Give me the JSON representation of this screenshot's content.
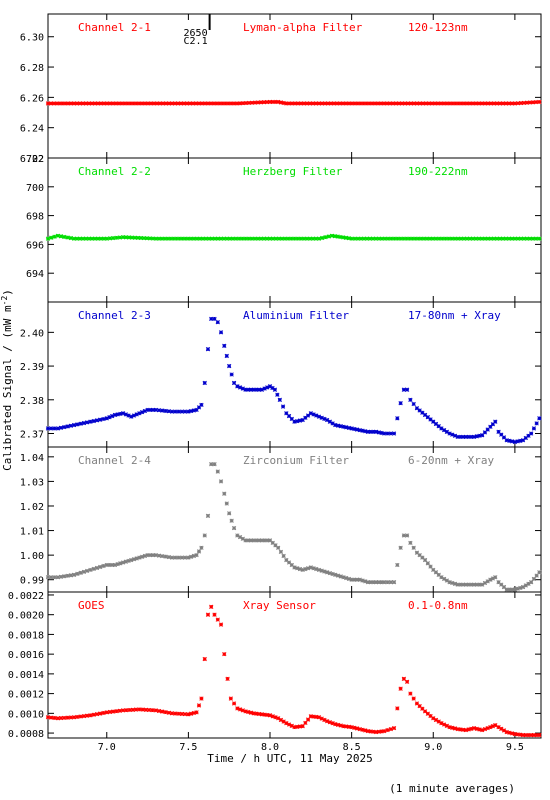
{
  "chart_data": [
    {
      "type": "scatter",
      "panel": "channel-2-1",
      "labels": [
        "Channel 2-1",
        "Lyman-alpha Filter",
        "120-123nm"
      ],
      "annotation": [
        "2650",
        "C2.1"
      ],
      "annotation_x": 7.63,
      "color": "#ff0000",
      "ylim": [
        6.22,
        6.315
      ],
      "yticks": [
        6.22,
        6.24,
        6.26,
        6.28,
        6.3
      ],
      "ytick_labels": [
        "6.22",
        "6.24",
        "6.26",
        "6.28",
        "6.30"
      ],
      "series": [
        {
          "points": [
            [
              6.64,
              6.256
            ],
            [
              6.8,
              6.256
            ],
            [
              7.0,
              6.256
            ],
            [
              7.2,
              6.256
            ],
            [
              7.4,
              6.256
            ],
            [
              7.6,
              6.256
            ],
            [
              7.8,
              6.256
            ],
            [
              8.0,
              6.257
            ],
            [
              8.05,
              6.257
            ],
            [
              8.1,
              6.256
            ],
            [
              8.3,
              6.256
            ],
            [
              8.5,
              6.256
            ],
            [
              8.7,
              6.256
            ],
            [
              8.9,
              6.256
            ],
            [
              9.1,
              6.256
            ],
            [
              9.3,
              6.256
            ],
            [
              9.5,
              6.256
            ],
            [
              9.65,
              6.257
            ]
          ]
        }
      ]
    },
    {
      "type": "scatter",
      "panel": "channel-2-2",
      "labels": [
        "Channel 2-2",
        "Herzberg Filter",
        "190-222nm"
      ],
      "color": "#00dd00",
      "ylim": [
        692.0,
        702.0
      ],
      "yticks": [
        694,
        696,
        698,
        700,
        702
      ],
      "ytick_labels": [
        "694",
        "696",
        "698",
        "700",
        "702"
      ],
      "series": [
        {
          "points": [
            [
              6.64,
              696.4
            ],
            [
              6.7,
              696.6
            ],
            [
              6.8,
              696.4
            ],
            [
              7.0,
              696.4
            ],
            [
              7.1,
              696.5
            ],
            [
              7.3,
              696.4
            ],
            [
              7.5,
              696.4
            ],
            [
              7.7,
              696.4
            ],
            [
              8.0,
              696.4
            ],
            [
              8.3,
              696.4
            ],
            [
              8.38,
              696.6
            ],
            [
              8.5,
              696.4
            ],
            [
              8.8,
              696.4
            ],
            [
              9.0,
              696.4
            ],
            [
              9.3,
              696.4
            ],
            [
              9.5,
              696.4
            ],
            [
              9.65,
              696.4
            ]
          ]
        }
      ]
    },
    {
      "type": "scatter",
      "panel": "channel-2-3",
      "labels": [
        "Channel 2-3",
        "Aluminium Filter",
        "17-80nm + Xray"
      ],
      "color": "#0000cc",
      "ylim": [
        2.366,
        2.409
      ],
      "yticks": [
        2.37,
        2.38,
        2.39,
        2.4
      ],
      "ytick_labels": [
        "2.37",
        "2.38",
        "2.39",
        "2.40"
      ],
      "series": [
        {
          "points": [
            [
              6.64,
              2.3715
            ],
            [
              6.7,
              2.3715
            ],
            [
              6.8,
              2.3725
            ],
            [
              6.9,
              2.3735
            ],
            [
              7.0,
              2.3745
            ],
            [
              7.05,
              2.3755
            ],
            [
              7.1,
              2.376
            ],
            [
              7.15,
              2.375
            ],
            [
              7.2,
              2.376
            ],
            [
              7.25,
              2.377
            ],
            [
              7.3,
              2.377
            ],
            [
              7.4,
              2.3765
            ],
            [
              7.5,
              2.3765
            ],
            [
              7.55,
              2.377
            ],
            [
              7.58,
              2.3785
            ],
            [
              7.6,
              2.385
            ],
            [
              7.62,
              2.395
            ],
            [
              7.64,
              2.404
            ],
            [
              7.66,
              2.404
            ],
            [
              7.68,
              2.403
            ],
            [
              7.7,
              2.4
            ],
            [
              7.72,
              2.396
            ],
            [
              7.75,
              2.39
            ],
            [
              7.78,
              2.385
            ],
            [
              7.8,
              2.384
            ],
            [
              7.85,
              2.383
            ],
            [
              7.9,
              2.383
            ],
            [
              7.95,
              2.383
            ],
            [
              8.0,
              2.384
            ],
            [
              8.03,
              2.383
            ],
            [
              8.06,
              2.38
            ],
            [
              8.1,
              2.376
            ],
            [
              8.15,
              2.3735
            ],
            [
              8.2,
              2.374
            ],
            [
              8.25,
              2.376
            ],
            [
              8.3,
              2.375
            ],
            [
              8.35,
              2.374
            ],
            [
              8.4,
              2.3725
            ],
            [
              8.45,
              2.372
            ],
            [
              8.5,
              2.3715
            ],
            [
              8.55,
              2.371
            ],
            [
              8.6,
              2.3705
            ],
            [
              8.65,
              2.3705
            ],
            [
              8.7,
              2.37
            ],
            [
              8.76,
              2.37
            ],
            [
              8.8,
              2.379
            ],
            [
              8.82,
              2.383
            ],
            [
              8.84,
              2.383
            ],
            [
              8.86,
              2.38
            ],
            [
              8.9,
              2.3775
            ],
            [
              8.95,
              2.3755
            ],
            [
              9.0,
              2.3735
            ],
            [
              9.05,
              2.3715
            ],
            [
              9.1,
              2.37
            ],
            [
              9.15,
              2.369
            ],
            [
              9.2,
              2.369
            ],
            [
              9.25,
              2.369
            ],
            [
              9.3,
              2.3695
            ],
            [
              9.35,
              2.372
            ],
            [
              9.38,
              2.3735
            ],
            [
              9.4,
              2.3705
            ],
            [
              9.45,
              2.368
            ],
            [
              9.5,
              2.3675
            ],
            [
              9.55,
              2.368
            ],
            [
              9.6,
              2.37
            ],
            [
              9.65,
              2.3745
            ]
          ]
        }
      ]
    },
    {
      "type": "scatter",
      "panel": "channel-2-4",
      "labels": [
        "Channel 2-4",
        "Zirconium Filter",
        "6-20nm + Xray"
      ],
      "color": "#808080",
      "ylim": [
        0.985,
        1.044
      ],
      "yticks": [
        0.99,
        1.0,
        1.01,
        1.02,
        1.03,
        1.04
      ],
      "ytick_labels": [
        "0.99",
        "1.00",
        "1.01",
        "1.02",
        "1.03",
        "1.04"
      ],
      "series": [
        {
          "points": [
            [
              6.64,
              0.991
            ],
            [
              6.7,
              0.991
            ],
            [
              6.8,
              0.992
            ],
            [
              6.9,
              0.994
            ],
            [
              7.0,
              0.996
            ],
            [
              7.05,
              0.996
            ],
            [
              7.1,
              0.997
            ],
            [
              7.15,
              0.998
            ],
            [
              7.2,
              0.999
            ],
            [
              7.25,
              1.0
            ],
            [
              7.3,
              1.0
            ],
            [
              7.4,
              0.999
            ],
            [
              7.5,
              0.999
            ],
            [
              7.55,
              1.0
            ],
            [
              7.58,
              1.003
            ],
            [
              7.6,
              1.008
            ],
            [
              7.62,
              1.016
            ],
            [
              7.64,
              1.037
            ],
            [
              7.66,
              1.037
            ],
            [
              7.68,
              1.034
            ],
            [
              7.7,
              1.03
            ],
            [
              7.72,
              1.025
            ],
            [
              7.75,
              1.017
            ],
            [
              7.78,
              1.011
            ],
            [
              7.8,
              1.008
            ],
            [
              7.85,
              1.006
            ],
            [
              7.9,
              1.006
            ],
            [
              7.95,
              1.006
            ],
            [
              8.0,
              1.006
            ],
            [
              8.05,
              1.003
            ],
            [
              8.1,
              0.998
            ],
            [
              8.15,
              0.995
            ],
            [
              8.2,
              0.994
            ],
            [
              8.25,
              0.995
            ],
            [
              8.3,
              0.994
            ],
            [
              8.35,
              0.993
            ],
            [
              8.4,
              0.992
            ],
            [
              8.45,
              0.991
            ],
            [
              8.5,
              0.99
            ],
            [
              8.55,
              0.99
            ],
            [
              8.6,
              0.989
            ],
            [
              8.65,
              0.989
            ],
            [
              8.7,
              0.989
            ],
            [
              8.76,
              0.989
            ],
            [
              8.8,
              1.003
            ],
            [
              8.82,
              1.008
            ],
            [
              8.84,
              1.008
            ],
            [
              8.86,
              1.005
            ],
            [
              8.9,
              1.001
            ],
            [
              8.95,
              0.998
            ],
            [
              9.0,
              0.994
            ],
            [
              9.05,
              0.991
            ],
            [
              9.1,
              0.989
            ],
            [
              9.15,
              0.988
            ],
            [
              9.2,
              0.988
            ],
            [
              9.25,
              0.988
            ],
            [
              9.3,
              0.988
            ],
            [
              9.35,
              0.99
            ],
            [
              9.38,
              0.991
            ],
            [
              9.4,
              0.989
            ],
            [
              9.45,
              0.986
            ],
            [
              9.5,
              0.986
            ],
            [
              9.55,
              0.987
            ],
            [
              9.6,
              0.989
            ],
            [
              9.65,
              0.993
            ]
          ]
        }
      ]
    },
    {
      "type": "scatter",
      "panel": "goes",
      "labels": [
        "GOES",
        "Xray Sensor",
        "0.1-0.8nm"
      ],
      "color": "#ff0000",
      "ylim": [
        0.00075,
        0.00223
      ],
      "yticks": [
        0.0008,
        0.001,
        0.0012,
        0.0014,
        0.0016,
        0.0018,
        0.002,
        0.0022
      ],
      "ytick_labels": [
        "0.0008",
        "0.0010",
        "0.0012",
        "0.0014",
        "0.0016",
        "0.0018",
        "0.0020",
        "0.0022"
      ],
      "series": [
        {
          "points": [
            [
              6.64,
              0.00096
            ],
            [
              6.7,
              0.00095
            ],
            [
              6.8,
              0.00096
            ],
            [
              6.9,
              0.00098
            ],
            [
              7.0,
              0.00101
            ],
            [
              7.1,
              0.00103
            ],
            [
              7.2,
              0.00104
            ],
            [
              7.3,
              0.00103
            ],
            [
              7.4,
              0.001
            ],
            [
              7.5,
              0.00099
            ],
            [
              7.55,
              0.00101
            ],
            [
              7.58,
              0.00115
            ],
            [
              7.6,
              0.00155
            ],
            [
              7.62,
              0.002
            ],
            [
              7.64,
              0.00208
            ],
            [
              7.66,
              0.002
            ],
            [
              7.68,
              0.00195
            ],
            [
              7.7,
              0.0019
            ],
            [
              7.72,
              0.0016
            ],
            [
              7.74,
              0.00135
            ],
            [
              7.76,
              0.00115
            ],
            [
              7.8,
              0.00105
            ],
            [
              7.85,
              0.00102
            ],
            [
              7.9,
              0.001
            ],
            [
              7.95,
              0.00099
            ],
            [
              8.0,
              0.00098
            ],
            [
              8.05,
              0.00095
            ],
            [
              8.1,
              0.0009
            ],
            [
              8.15,
              0.00086
            ],
            [
              8.2,
              0.00087
            ],
            [
              8.25,
              0.00097
            ],
            [
              8.3,
              0.00096
            ],
            [
              8.35,
              0.00092
            ],
            [
              8.4,
              0.00089
            ],
            [
              8.45,
              0.00087
            ],
            [
              8.5,
              0.00086
            ],
            [
              8.55,
              0.00084
            ],
            [
              8.6,
              0.00082
            ],
            [
              8.65,
              0.00081
            ],
            [
              8.7,
              0.00082
            ],
            [
              8.76,
              0.00085
            ],
            [
              8.8,
              0.00125
            ],
            [
              8.82,
              0.00135
            ],
            [
              8.84,
              0.00132
            ],
            [
              8.86,
              0.0012
            ],
            [
              8.9,
              0.0011
            ],
            [
              8.95,
              0.00102
            ],
            [
              9.0,
              0.00095
            ],
            [
              9.05,
              0.0009
            ],
            [
              9.1,
              0.00086
            ],
            [
              9.15,
              0.00084
            ],
            [
              9.2,
              0.00083
            ],
            [
              9.25,
              0.00085
            ],
            [
              9.3,
              0.00083
            ],
            [
              9.35,
              0.00086
            ],
            [
              9.38,
              0.00088
            ],
            [
              9.4,
              0.00086
            ],
            [
              9.45,
              0.00081
            ],
            [
              9.5,
              0.00079
            ],
            [
              9.55,
              0.00078
            ],
            [
              9.6,
              0.00078
            ],
            [
              9.65,
              0.00078
            ]
          ]
        }
      ]
    }
  ],
  "xaxis": {
    "xlim": [
      6.64,
      9.66
    ],
    "ticks": [
      7.0,
      7.5,
      8.0,
      8.5,
      9.0,
      9.5
    ],
    "tick_labels": [
      "7.0",
      "7.5",
      "8.0",
      "8.5",
      "9.0",
      "9.5"
    ],
    "label": "Time / h UTC, 11 May 2025"
  },
  "ylabel_text": "Calibrated Signal / (mW m",
  "ylabel_sup": "-2",
  "ylabel_close": ")",
  "footnote": "(1 minute averages)"
}
